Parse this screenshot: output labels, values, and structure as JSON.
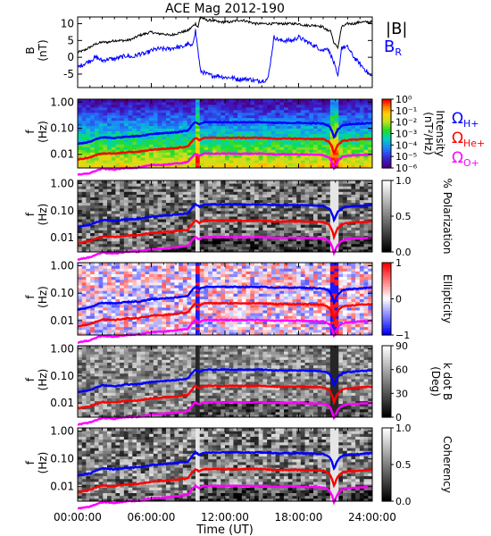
{
  "chart_data": {
    "type": "spectrogram",
    "title": "ACE Mag 2012-190",
    "xlabel": "Time (UT)",
    "x_ticks": [
      "00:00:00",
      "06:00:00",
      "12:00:00",
      "18:00:00",
      "24:00:00"
    ],
    "x_range_hours": [
      0,
      24
    ],
    "colors": {
      "B_total": "#000000",
      "B_R": "#0000ff",
      "omega_H": "#0000ff",
      "omega_He": "#ff0000",
      "omega_O": "#ff00ff"
    },
    "panels": [
      {
        "id": "field",
        "type": "line",
        "ylabel": "B",
        "yunit": "(nT)",
        "ylim": [
          -9,
          12
        ],
        "y_ticks": [
          "10",
          "5",
          "0",
          "-5"
        ],
        "y_tick_values": [
          10,
          5,
          0,
          -5
        ],
        "legend": [
          "|B|",
          "B"
        ],
        "legend_sub": "R",
        "series": [
          {
            "name": "|B|",
            "color": "#000000",
            "x": [
              0,
              0.5,
              1,
              1.5,
              2,
              2.5,
              3,
              3.5,
              4,
              4.5,
              5,
              5.5,
              6,
              6.5,
              7,
              7.5,
              8,
              8.5,
              9,
              9.3,
              9.6,
              9.8,
              10,
              10.5,
              11,
              11.5,
              12,
              12.5,
              13,
              13.5,
              14,
              14.5,
              15,
              15.5,
              16,
              16.5,
              17,
              17.5,
              18,
              18.5,
              19,
              19.5,
              20,
              20.3,
              20.6,
              20.9,
              21.2,
              21.5,
              22,
              22.5,
              23,
              23.5,
              24
            ],
            "y": [
              1.5,
              2,
              3,
              4,
              4.5,
              4.5,
              5,
              5,
              5,
              5.5,
              6.5,
              7,
              7.5,
              7,
              7,
              6.5,
              7,
              7.5,
              8,
              9,
              10,
              9,
              12,
              11,
              11,
              10.5,
              10.5,
              10.5,
              11,
              11,
              10.5,
              10,
              10,
              10,
              10,
              10,
              10,
              10,
              10,
              9.5,
              9.5,
              9.5,
              9,
              8,
              8,
              4,
              3,
              9,
              10,
              10,
              10.5,
              10.5,
              10.5
            ]
          },
          {
            "name": "B_R",
            "color": "#0000ff",
            "x": [
              0,
              0.5,
              1,
              1.5,
              2,
              2.5,
              3,
              3.5,
              4,
              4.5,
              5,
              5.5,
              6,
              6.5,
              7,
              7.5,
              8,
              8.5,
              9,
              9.3,
              9.6,
              9.8,
              10,
              10.5,
              11,
              11.5,
              12,
              12.5,
              13,
              13.5,
              14,
              14.5,
              15,
              15.5,
              16,
              16.5,
              17,
              17.5,
              18,
              18.5,
              19,
              19.5,
              20,
              20.3,
              20.6,
              20.9,
              21.2,
              21.5,
              22,
              22.5,
              23,
              23.5,
              24
            ],
            "y": [
              -3,
              -2,
              -1,
              0,
              -1,
              -0.5,
              -0.5,
              0,
              0.5,
              0,
              1,
              1,
              2,
              2.5,
              2.5,
              2.5,
              3,
              3,
              4,
              3,
              8,
              2,
              -4,
              -5,
              -5.5,
              -5.5,
              -6,
              -6,
              -6.5,
              -6.5,
              -6.5,
              -7,
              -7,
              -6.5,
              6,
              5,
              5,
              5,
              6,
              5,
              4,
              3,
              2,
              3,
              1,
              -2,
              -6,
              3,
              3,
              0,
              -2,
              -4,
              -6
            ]
          }
        ]
      },
      {
        "id": "intensity",
        "type": "heatmap",
        "ylabel": "f",
        "yunit": "(Hz)",
        "y_ticks": [
          "1.00",
          "0.10",
          "0.01"
        ],
        "y_tick_values": [
          1,
          0.1,
          0.01
        ],
        "ylim": [
          0.003,
          1.3
        ],
        "colorbar": {
          "label": "Intensity",
          "unit": "(nT²/Hz)",
          "ticks": [
            "10⁰",
            "10⁻¹",
            "10⁻²",
            "10⁻³",
            "10⁻⁴",
            "10⁻⁵",
            "10⁻⁶"
          ],
          "colorscale": "rainbow"
        },
        "gyro_legend": [
          {
            "base": "Ω",
            "sub": "H+",
            "color": "#0000ff"
          },
          {
            "base": "Ω",
            "sub": "He+",
            "color": "#ff0000"
          },
          {
            "base": "Ω",
            "sub": "O+",
            "color": "#ff00ff"
          }
        ]
      },
      {
        "id": "polarization",
        "type": "heatmap",
        "ylabel": "f",
        "yunit": "(Hz)",
        "y_ticks": [
          "1.00",
          "0.10",
          "0.01"
        ],
        "y_tick_values": [
          1,
          0.1,
          0.01
        ],
        "ylim": [
          0.003,
          1.3
        ],
        "colorbar": {
          "label": "% Polarization",
          "unit": "",
          "ticks": [
            "1.0",
            "0.5",
            "0.0"
          ],
          "colorscale": "gray"
        }
      },
      {
        "id": "ellipticity",
        "type": "heatmap",
        "ylabel": "f",
        "yunit": "(Hz)",
        "y_ticks": [
          "1.00",
          "0.10",
          "0.01"
        ],
        "y_tick_values": [
          1,
          0.1,
          0.01
        ],
        "ylim": [
          0.003,
          1.3
        ],
        "colorbar": {
          "label": "Ellipticity",
          "unit": "",
          "ticks": [
            "1",
            "0",
            "−1"
          ],
          "colorscale": "bluewhitered"
        }
      },
      {
        "id": "kdotb",
        "type": "heatmap",
        "ylabel": "f",
        "yunit": "(Hz)",
        "y_ticks": [
          "1.00",
          "0.10",
          "0.01"
        ],
        "y_tick_values": [
          1,
          0.1,
          0.01
        ],
        "ylim": [
          0.003,
          1.3
        ],
        "colorbar": {
          "label": "k dot B",
          "unit": "(Deg)",
          "ticks": [
            "90",
            "60",
            "30",
            "0"
          ],
          "colorscale": "gray"
        }
      },
      {
        "id": "coherency",
        "type": "heatmap",
        "ylabel": "f",
        "yunit": "(Hz)",
        "y_ticks": [
          "1.00",
          "0.10",
          "0.01"
        ],
        "y_tick_values": [
          1,
          0.1,
          0.01
        ],
        "ylim": [
          0.003,
          1.3
        ],
        "colorbar": {
          "label": "Coherency",
          "unit": "",
          "ticks": [
            "1.0",
            "0.5",
            "0.0"
          ],
          "colorscale": "gray"
        }
      }
    ],
    "gyrofrequencies": [
      {
        "name": "Ω_H+",
        "color": "#0000ff",
        "x": [
          0,
          1,
          2,
          3,
          4,
          5,
          6,
          7,
          8,
          9,
          9.6,
          9.9,
          10.3,
          11,
          12,
          13,
          14,
          15,
          16,
          17,
          18,
          19,
          20,
          20.5,
          20.9,
          21.2,
          21.6,
          22,
          23,
          24
        ],
        "y": [
          0.025,
          0.03,
          0.045,
          0.042,
          0.048,
          0.05,
          0.06,
          0.065,
          0.07,
          0.08,
          0.17,
          0.14,
          0.17,
          0.17,
          0.17,
          0.17,
          0.17,
          0.17,
          0.16,
          0.16,
          0.16,
          0.155,
          0.15,
          0.12,
          0.04,
          0.09,
          0.13,
          0.14,
          0.15,
          0.16
        ]
      },
      {
        "name": "Ω_He+",
        "color": "#ff0000",
        "x": [
          0,
          1,
          2,
          3,
          4,
          5,
          6,
          7,
          8,
          9,
          9.6,
          9.9,
          10.3,
          11,
          12,
          13,
          14,
          15,
          16,
          17,
          18,
          19,
          20,
          20.5,
          20.9,
          21.2,
          21.6,
          22,
          23,
          24
        ],
        "y": [
          0.0063,
          0.0075,
          0.011,
          0.0105,
          0.012,
          0.0125,
          0.015,
          0.016,
          0.0175,
          0.02,
          0.043,
          0.035,
          0.043,
          0.043,
          0.043,
          0.043,
          0.043,
          0.043,
          0.04,
          0.04,
          0.04,
          0.039,
          0.038,
          0.03,
          0.01,
          0.023,
          0.033,
          0.035,
          0.038,
          0.04
        ]
      },
      {
        "name": "Ω_O+",
        "color": "#ff00ff",
        "x": [
          0,
          1,
          2,
          3,
          4,
          5,
          6,
          7,
          8,
          9,
          9.6,
          9.9,
          10.3,
          11,
          12,
          13,
          14,
          15,
          16,
          17,
          18,
          19,
          20,
          20.5,
          20.9,
          21.2,
          21.6,
          22,
          23,
          24
        ],
        "y": [
          0.0016,
          0.0019,
          0.0028,
          0.0026,
          0.003,
          0.0031,
          0.0038,
          0.004,
          0.0044,
          0.005,
          0.0106,
          0.0088,
          0.0106,
          0.0106,
          0.0106,
          0.0106,
          0.0106,
          0.0106,
          0.01,
          0.01,
          0.01,
          0.0097,
          0.0094,
          0.0075,
          0.0025,
          0.0056,
          0.0081,
          0.0088,
          0.0094,
          0.01
        ]
      }
    ]
  }
}
